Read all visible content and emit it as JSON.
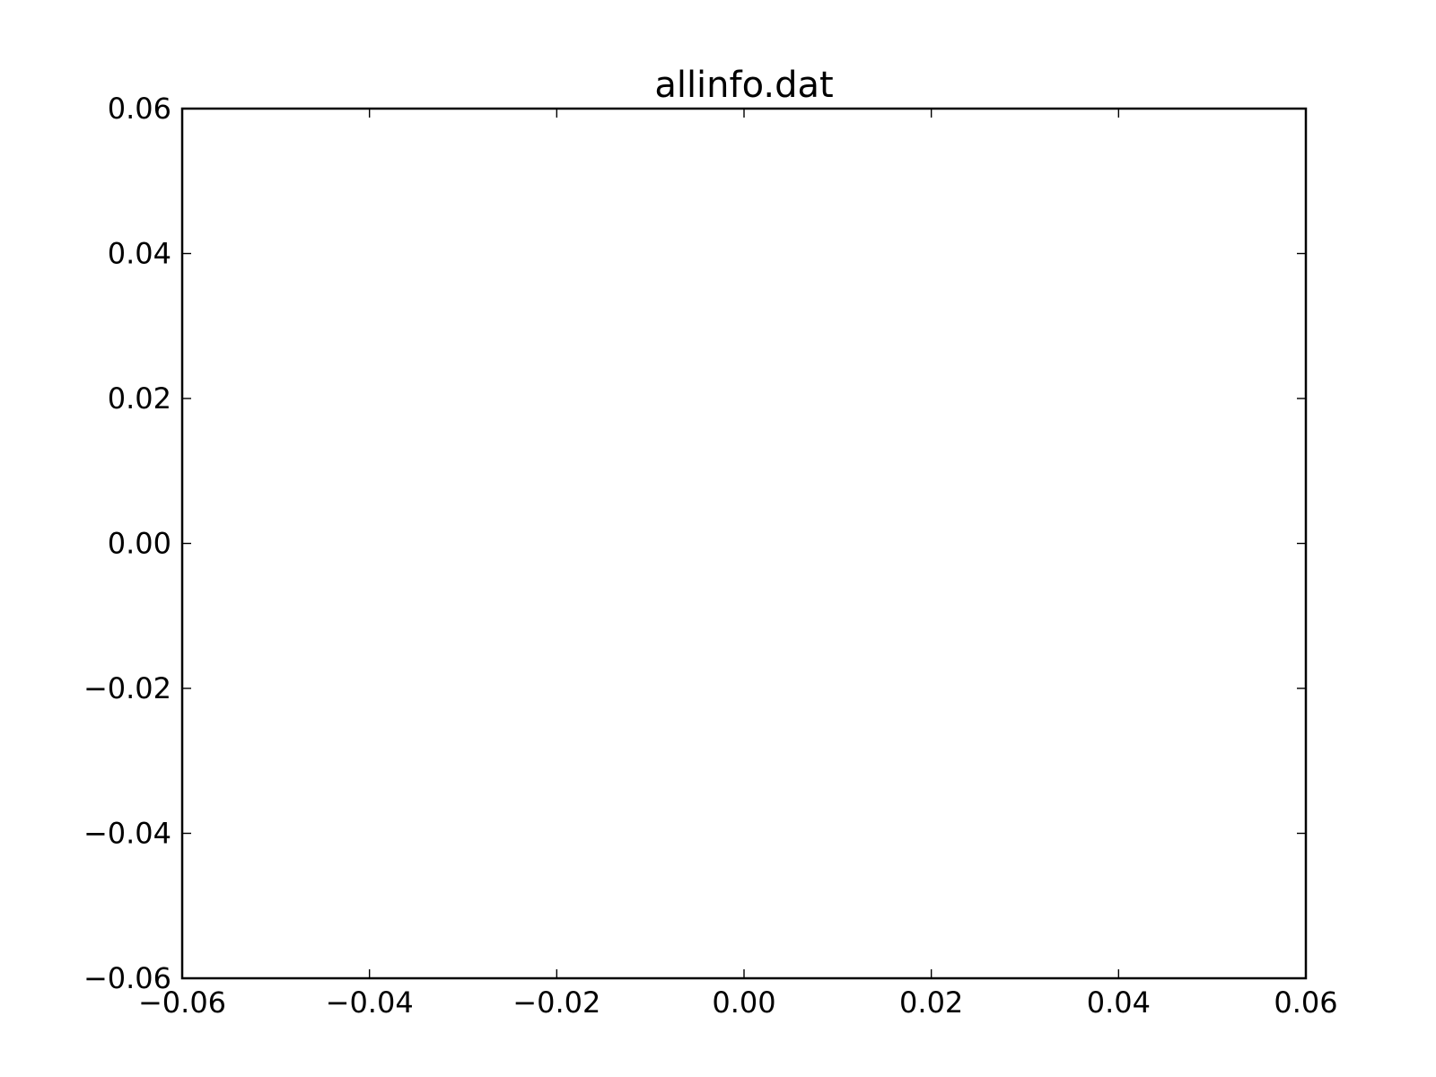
{
  "chart_data": {
    "type": "scatter",
    "title": "allinfo.dat",
    "xlabel": "",
    "ylabel": "",
    "xlim": [
      -0.06,
      0.06
    ],
    "ylim": [
      -0.06,
      0.06
    ],
    "x_ticks": [
      -0.06,
      -0.04,
      -0.02,
      0.0,
      0.02,
      0.04,
      0.06
    ],
    "y_ticks": [
      -0.06,
      -0.04,
      -0.02,
      0.0,
      0.02,
      0.04,
      0.06
    ],
    "x_tick_labels": [
      "−0.06",
      "−0.04",
      "−0.02",
      "0.00",
      "0.02",
      "0.04",
      "0.06"
    ],
    "y_tick_labels": [
      "−0.06",
      "−0.04",
      "−0.02",
      "0.00",
      "0.02",
      "0.04",
      "0.06"
    ],
    "series": [],
    "grid": false,
    "legend": "none"
  }
}
